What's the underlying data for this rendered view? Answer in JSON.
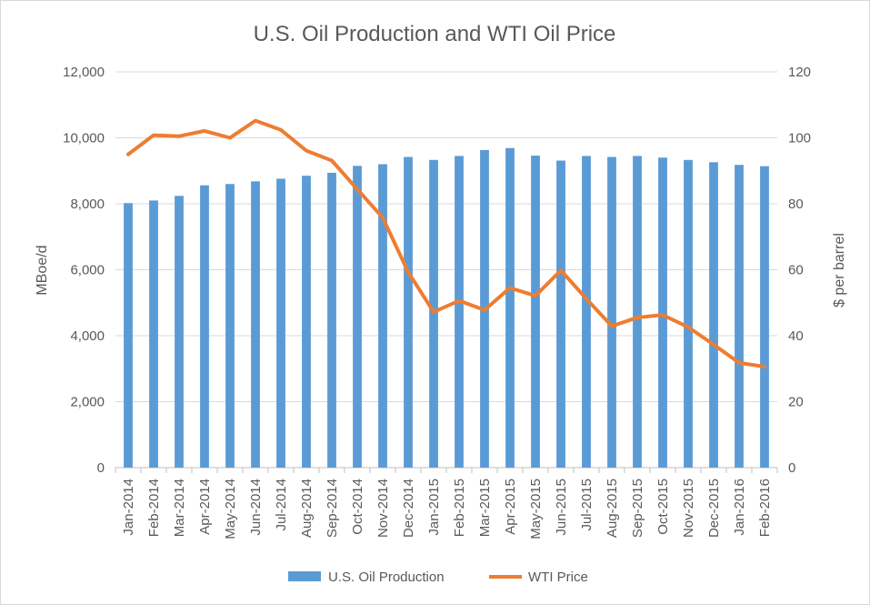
{
  "chart_data": {
    "type": "bar+line",
    "title": "U.S. Oil Production and WTI Oil Price",
    "categories": [
      "Jan-2014",
      "Feb-2014",
      "Mar-2014",
      "Apr-2014",
      "May-2014",
      "Jun-2014",
      "Jul-2014",
      "Aug-2014",
      "Sep-2014",
      "Oct-2014",
      "Nov-2014",
      "Dec-2014",
      "Jan-2015",
      "Feb-2015",
      "Mar-2015",
      "Apr-2015",
      "May-2015",
      "Jun-2015",
      "Jul-2015",
      "Aug-2015",
      "Sep-2015",
      "Oct-2015",
      "Nov-2015",
      "Dec-2015",
      "Jan-2016",
      "Feb-2016"
    ],
    "series": [
      {
        "name": "U.S. Oil Production",
        "type": "bar",
        "axis": "left",
        "color": "#5b9bd5",
        "values": [
          8020,
          8100,
          8240,
          8560,
          8600,
          8680,
          8760,
          8850,
          8940,
          9150,
          9200,
          9420,
          9330,
          9450,
          9630,
          9690,
          9460,
          9310,
          9450,
          9420,
          9450,
          9400,
          9330,
          9260,
          9180,
          9140
        ]
      },
      {
        "name": "WTI Price",
        "type": "line",
        "axis": "right",
        "color": "#ed7d31",
        "values": [
          95.0,
          100.8,
          100.5,
          102.1,
          100.0,
          105.2,
          102.4,
          96.1,
          93.1,
          84.4,
          75.8,
          59.3,
          47.2,
          50.6,
          47.8,
          54.5,
          52.1,
          59.8,
          51.2,
          42.9,
          45.5,
          46.3,
          42.6,
          37.3,
          31.8,
          30.6
        ]
      }
    ],
    "y_left": {
      "label": "MBoe/d",
      "min": 0,
      "max": 12000,
      "ticks": [
        "0",
        "2,000",
        "4,000",
        "6,000",
        "8,000",
        "10,000",
        "12,000"
      ]
    },
    "y_right": {
      "label": "$ per barrel",
      "min": 0,
      "max": 120,
      "ticks": [
        "0",
        "20",
        "40",
        "60",
        "80",
        "100",
        "120"
      ]
    },
    "grid": "horizontal",
    "legend": {
      "position": "bottom"
    }
  }
}
